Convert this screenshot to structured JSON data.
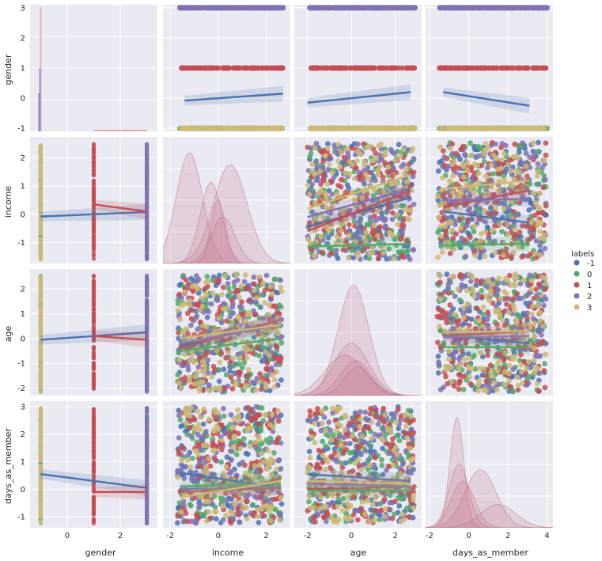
{
  "chart_data": {
    "type": "pairplot",
    "variables": [
      "gender",
      "income",
      "age",
      "days_as_member"
    ],
    "hue": {
      "title": "labels",
      "levels": [
        "-1",
        "0",
        "1",
        "2",
        "3"
      ],
      "colors": [
        "#4c72b0",
        "#55a868",
        "#c44e52",
        "#8172b2",
        "#ccb974"
      ]
    },
    "background": "#eaeaf2",
    "grid": true,
    "ranges": {
      "gender": [
        -1.1,
        3.1
      ],
      "income": [
        -1.75,
        2.75
      ],
      "age": [
        -2.3,
        2.8
      ],
      "days_as_member": [
        -1.4,
        3.2
      ]
    },
    "column_ranges": {
      "gender": [
        -1.4,
        3.4
      ],
      "income": [
        -2.3,
        3.0
      ],
      "age": [
        -2.6,
        3.2
      ],
      "days_as_member": [
        -2.2,
        4.3
      ]
    },
    "ticks": {
      "gender_y": [
        "-1",
        "0",
        "1",
        "2",
        "3"
      ],
      "gender_y_values": [
        -1,
        0,
        1,
        2,
        3
      ],
      "income_y": [
        "-1",
        "0",
        "1",
        "2"
      ],
      "income_y_values": [
        -1,
        0,
        1,
        2
      ],
      "age_y": [
        "-2",
        "-1",
        "0",
        "1",
        "2"
      ],
      "age_y_values": [
        -2,
        -1,
        0,
        1,
        2
      ],
      "days_y": [
        "-1",
        "0",
        "1",
        "2",
        "3"
      ],
      "days_y_values": [
        -1,
        0,
        1,
        2,
        3
      ],
      "gender_x": [
        "0",
        "2"
      ],
      "gender_x_values": [
        0,
        2
      ],
      "income_x": [
        "-2",
        "0",
        "2"
      ],
      "income_x_values": [
        -2,
        0,
        2
      ],
      "age_x": [
        "-2",
        "0",
        "2"
      ],
      "age_x_values": [
        -2,
        0,
        2
      ],
      "days_x": [
        "-2",
        "0",
        "2",
        "4"
      ],
      "days_x_values": [
        -2,
        0,
        2,
        4
      ]
    },
    "regression_lines": {
      "gender_vs_income": [
        {
          "label": "-1",
          "x": [
            -1.4,
            2.7
          ],
          "y": [
            -0.08,
            0.15
          ]
        }
      ],
      "gender_vs_age": [
        {
          "label": "-1",
          "x": [
            -2.0,
            2.7
          ],
          "y": [
            -0.15,
            0.2
          ]
        }
      ],
      "gender_vs_days_as_member": [
        {
          "label": "-1",
          "x": [
            -1.3,
            3.1
          ],
          "y": [
            0.2,
            -0.25
          ]
        }
      ],
      "income_vs_gender": [
        {
          "label": "-1",
          "x": [
            -1,
            3
          ],
          "y": [
            -0.08,
            0.08
          ]
        },
        {
          "label": "1",
          "x": [
            1,
            3
          ],
          "y": [
            0.35,
            0.1
          ]
        }
      ],
      "income_vs_age": [
        {
          "label": "-1",
          "x": [
            -2.0,
            2.7
          ],
          "y": [
            -0.45,
            0.6
          ]
        },
        {
          "label": "1",
          "x": [
            -2.0,
            2.7
          ],
          "y": [
            -0.6,
            0.85
          ]
        },
        {
          "label": "2",
          "x": [
            -2.0,
            2.7
          ],
          "y": [
            -0.1,
            0.9
          ]
        },
        {
          "label": "0",
          "x": [
            -2.0,
            2.7
          ],
          "y": [
            -1.15,
            -1.05
          ]
        },
        {
          "label": "3",
          "x": [
            -2.0,
            2.7
          ],
          "y": [
            0.2,
            1.4
          ]
        }
      ],
      "income_vs_days_as_member": [
        {
          "label": "-1",
          "x": [
            -1.3,
            3.1
          ],
          "y": [
            0.1,
            -0.3
          ]
        },
        {
          "label": "1",
          "x": [
            -1.3,
            3.1
          ],
          "y": [
            0.25,
            0.85
          ]
        },
        {
          "label": "2",
          "x": [
            -1.3,
            3.1
          ],
          "y": [
            0.5,
            0.55
          ]
        },
        {
          "label": "0",
          "x": [
            -1.3,
            3.1
          ],
          "y": [
            -1.1,
            -1.05
          ]
        },
        {
          "label": "3",
          "x": [
            -1.3,
            3.1
          ],
          "y": [
            0.9,
            1.2
          ]
        }
      ],
      "age_vs_gender": [
        {
          "label": "-1",
          "x": [
            -1,
            3
          ],
          "y": [
            -0.05,
            0.25
          ]
        },
        {
          "label": "1",
          "x": [
            1,
            3
          ],
          "y": [
            0.1,
            -0.05
          ]
        }
      ],
      "age_vs_income": [
        {
          "label": "-1",
          "x": [
            -1.6,
            2.6
          ],
          "y": [
            -0.3,
            0.75
          ]
        },
        {
          "label": "1",
          "x": [
            -1.6,
            2.6
          ],
          "y": [
            -0.4,
            0.75
          ]
        },
        {
          "label": "2",
          "x": [
            -1.6,
            2.6
          ],
          "y": [
            -0.2,
            0.55
          ]
        },
        {
          "label": "0",
          "x": [
            -1.6,
            2.6
          ],
          "y": [
            -0.5,
            0.0
          ]
        },
        {
          "label": "3",
          "x": [
            -1.6,
            2.6
          ],
          "y": [
            0.0,
            0.55
          ]
        }
      ],
      "age_vs_days_as_member": [
        {
          "label": "-1",
          "x": [
            -1.3,
            3.1
          ],
          "y": [
            0.15,
            -0.2
          ]
        },
        {
          "label": "1",
          "x": [
            -1.3,
            3.1
          ],
          "y": [
            0.1,
            0.3
          ]
        },
        {
          "label": "2",
          "x": [
            -1.3,
            3.1
          ],
          "y": [
            0.05,
            0.1
          ]
        },
        {
          "label": "0",
          "x": [
            -1.3,
            3.1
          ],
          "y": [
            -0.35,
            -0.35
          ]
        },
        {
          "label": "3",
          "x": [
            -1.3,
            3.1
          ],
          "y": [
            0.25,
            0.3
          ]
        }
      ],
      "days_as_member_vs_gender": [
        {
          "label": "-1",
          "x": [
            -1,
            3
          ],
          "y": [
            0.55,
            0.05
          ]
        },
        {
          "label": "1",
          "x": [
            1,
            3
          ],
          "y": [
            -0.1,
            -0.1
          ]
        }
      ],
      "days_as_member_vs_income": [
        {
          "label": "-1",
          "x": [
            -1.6,
            2.6
          ],
          "y": [
            0.6,
            0.05
          ]
        },
        {
          "label": "1",
          "x": [
            -1.6,
            2.6
          ],
          "y": [
            -0.1,
            0.05
          ]
        },
        {
          "label": "2",
          "x": [
            -1.6,
            2.6
          ],
          "y": [
            0.0,
            0.1
          ]
        },
        {
          "label": "0",
          "x": [
            -1.6,
            2.6
          ],
          "y": [
            0.1,
            0.2
          ]
        },
        {
          "label": "3",
          "x": [
            -1.6,
            2.6
          ],
          "y": [
            -0.3,
            0.3
          ]
        }
      ],
      "days_as_member_vs_age": [
        {
          "label": "-1",
          "x": [
            -2.0,
            2.7
          ],
          "y": [
            0.55,
            0.3
          ]
        },
        {
          "label": "1",
          "x": [
            -2.0,
            2.7
          ],
          "y": [
            0.0,
            0.1
          ]
        },
        {
          "label": "2",
          "x": [
            -2.0,
            2.7
          ],
          "y": [
            0.2,
            0.1
          ]
        },
        {
          "label": "0",
          "x": [
            -2.0,
            2.7
          ],
          "y": [
            -0.05,
            -0.05
          ]
        },
        {
          "label": "3",
          "x": [
            -2.0,
            2.7
          ],
          "y": [
            0.3,
            0.2
          ]
        }
      ]
    }
  }
}
